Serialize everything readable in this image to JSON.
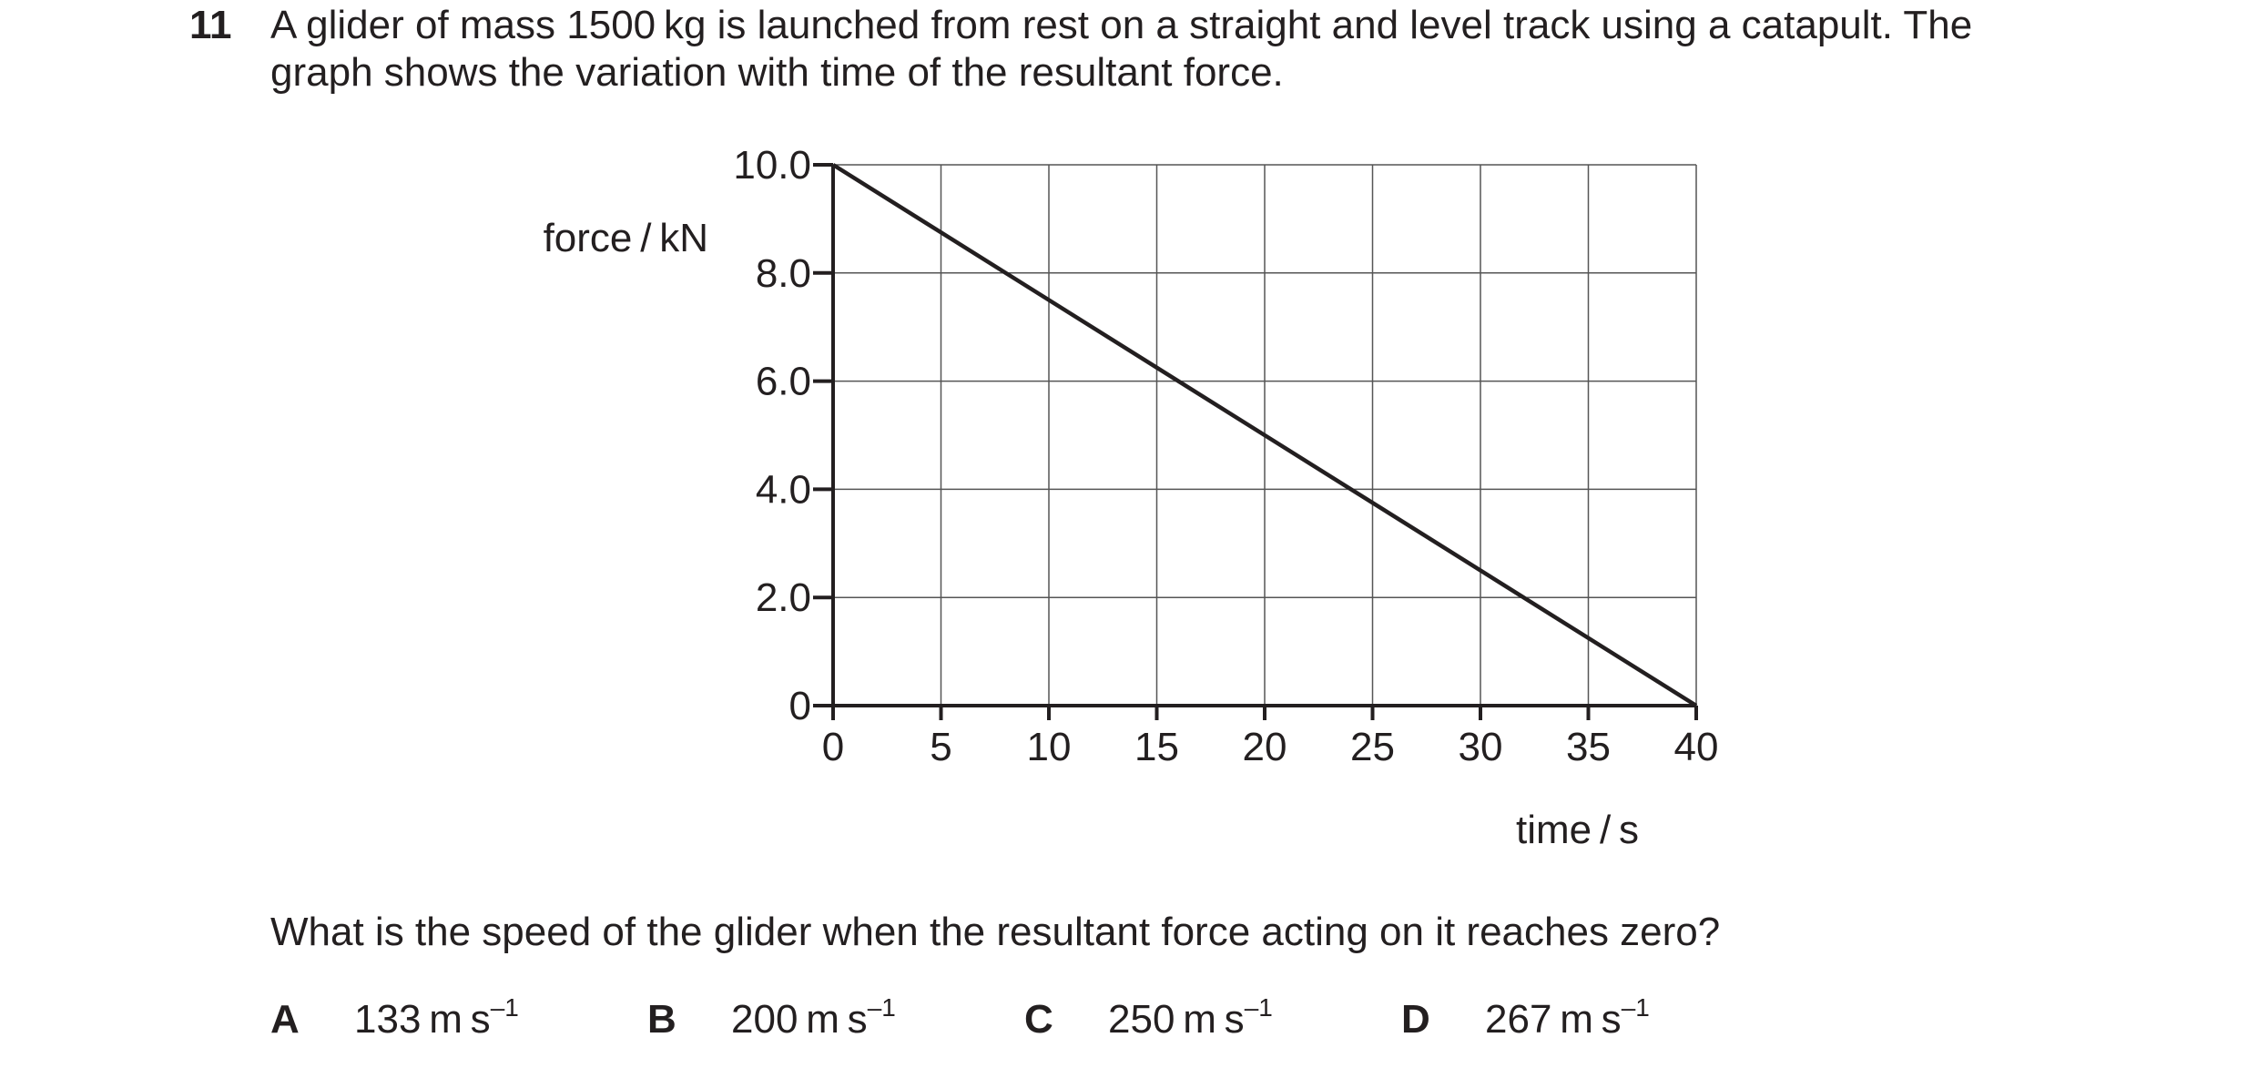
{
  "question": {
    "number": "11",
    "stem_line1": "A glider of mass 1500 kg is launched from rest on a straight and level track using a catapult. The",
    "stem_line2": "graph shows the variation with time of the resultant force.",
    "prompt": "What is the speed of the glider when the resultant force acting on it reaches zero?",
    "options": [
      {
        "letter": "A",
        "value": "133 m s",
        "unit_exp": "–1"
      },
      {
        "letter": "B",
        "value": "200 m s",
        "unit_exp": "–1"
      },
      {
        "letter": "C",
        "value": "250 m s",
        "unit_exp": "–1"
      },
      {
        "letter": "D",
        "value": "267 m s",
        "unit_exp": "–1"
      }
    ]
  },
  "chart_data": {
    "type": "line",
    "title": "",
    "xlabel": "time / s",
    "ylabel": "force / kN",
    "xlim": [
      0,
      40
    ],
    "ylim": [
      0,
      10
    ],
    "x_ticks": [
      0,
      5,
      10,
      15,
      20,
      25,
      30,
      35,
      40
    ],
    "x_tick_labels": [
      "0",
      "5",
      "10",
      "15",
      "20",
      "25",
      "30",
      "35",
      "40"
    ],
    "y_ticks": [
      0,
      2,
      4,
      6,
      8,
      10
    ],
    "y_tick_labels": [
      "0",
      "2.0",
      "4.0",
      "6.0",
      "8.0",
      "10.0"
    ],
    "grid": true,
    "series": [
      {
        "x": [
          0,
          40
        ],
        "y": [
          10.0,
          0
        ]
      }
    ]
  }
}
